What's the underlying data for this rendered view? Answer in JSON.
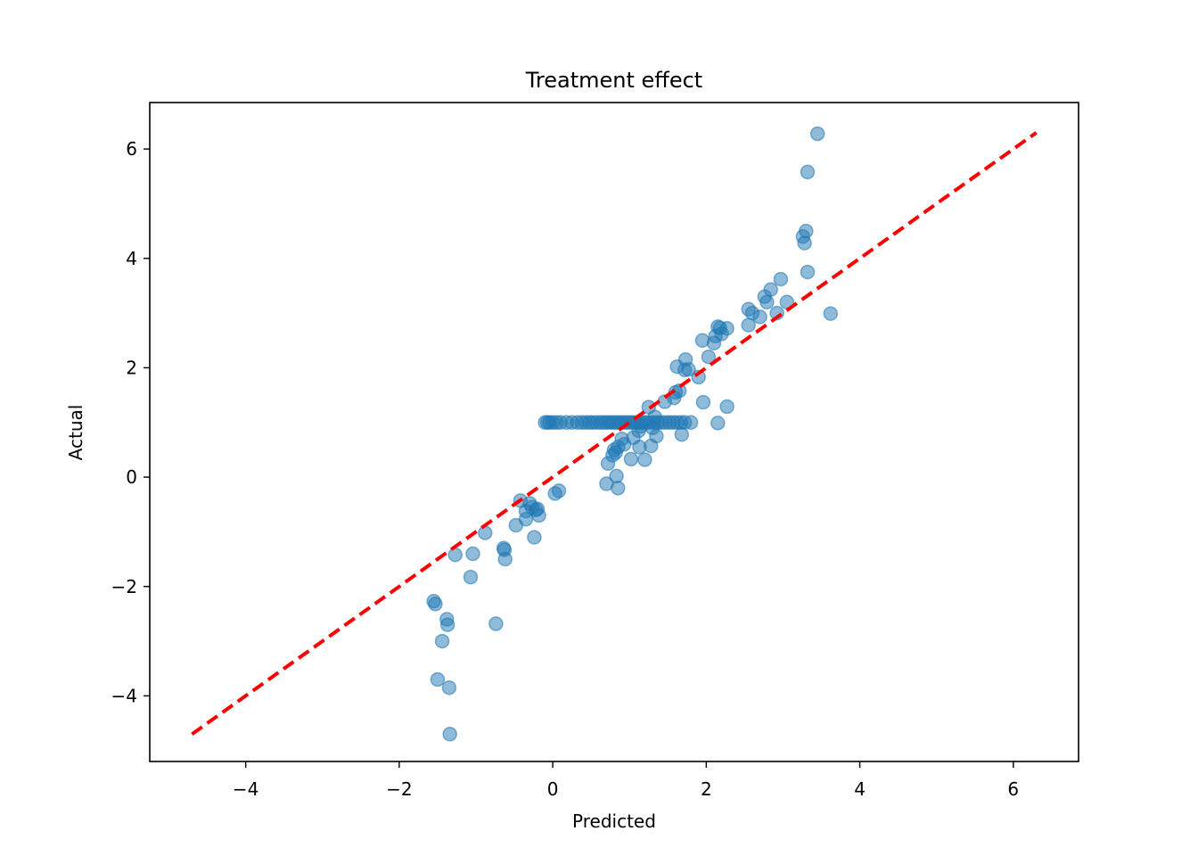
{
  "chart_data": {
    "type": "scatter",
    "title": "Treatment effect",
    "xlabel": "Predicted",
    "ylabel": "Actual",
    "xlim": [
      -5.25,
      6.85
    ],
    "ylim": [
      -5.2,
      6.85
    ],
    "xticks": [
      -4,
      -2,
      0,
      2,
      4,
      6
    ],
    "yticks": [
      -4,
      -2,
      0,
      2,
      4,
      6
    ],
    "xtick_labels": [
      "−4",
      "−2",
      "0",
      "2",
      "4",
      "6"
    ],
    "ytick_labels": [
      "−4",
      "−2",
      "0",
      "2",
      "4",
      "6"
    ],
    "grid": false,
    "legend": "none",
    "series": [
      {
        "name": "points",
        "color": "#1f77b4",
        "alpha": 0.5,
        "points": [
          [
            3.45,
            6.28
          ],
          [
            3.32,
            5.58
          ],
          [
            3.3,
            4.5
          ],
          [
            3.26,
            4.4
          ],
          [
            3.28,
            4.28
          ],
          [
            3.32,
            3.75
          ],
          [
            3.62,
            2.99
          ],
          [
            2.97,
            3.62
          ],
          [
            3.05,
            3.2
          ],
          [
            2.92,
            3.0
          ],
          [
            2.84,
            3.43
          ],
          [
            2.76,
            3.3
          ],
          [
            2.79,
            3.2
          ],
          [
            2.7,
            2.93
          ],
          [
            2.6,
            3.0
          ],
          [
            2.55,
            3.07
          ],
          [
            2.55,
            2.78
          ],
          [
            2.27,
            2.72
          ],
          [
            2.2,
            2.62
          ],
          [
            2.15,
            2.75
          ],
          [
            2.18,
            2.73
          ],
          [
            2.12,
            2.58
          ],
          [
            2.1,
            2.45
          ],
          [
            1.95,
            2.5
          ],
          [
            2.03,
            2.2
          ],
          [
            1.77,
            1.97
          ],
          [
            1.73,
            2.15
          ],
          [
            1.72,
            1.96
          ],
          [
            1.9,
            1.83
          ],
          [
            1.62,
            2.02
          ],
          [
            1.65,
            1.58
          ],
          [
            1.6,
            1.55
          ],
          [
            1.58,
            1.45
          ],
          [
            1.46,
            1.38
          ],
          [
            1.96,
            1.37
          ],
          [
            2.27,
            1.29
          ],
          [
            2.15,
            0.99
          ],
          [
            1.8,
            1.0
          ],
          [
            1.68,
            0.78
          ],
          [
            1.25,
            1.28
          ],
          [
            1.33,
            1.1
          ],
          [
            1.15,
            0.93
          ],
          [
            1.3,
            0.9
          ],
          [
            1.35,
            0.75
          ],
          [
            1.12,
            0.85
          ],
          [
            1.05,
            0.72
          ],
          [
            1.28,
            0.57
          ],
          [
            1.13,
            0.55
          ],
          [
            1.2,
            0.32
          ],
          [
            1.02,
            0.33
          ],
          [
            0.85,
            0.55
          ],
          [
            0.8,
            0.5
          ],
          [
            0.82,
            0.45
          ],
          [
            0.78,
            0.4
          ],
          [
            0.93,
            0.6
          ],
          [
            0.9,
            0.7
          ],
          [
            0.72,
            0.25
          ],
          [
            0.83,
            0.02
          ],
          [
            0.7,
            -0.12
          ],
          [
            0.85,
            -0.2
          ],
          [
            0.08,
            -0.25
          ],
          [
            0.03,
            -0.3
          ],
          [
            -0.2,
            -0.58
          ],
          [
            -0.18,
            -0.7
          ],
          [
            -0.3,
            -0.48
          ],
          [
            -0.27,
            -0.55
          ],
          [
            -0.22,
            -0.6
          ],
          [
            -0.35,
            -0.62
          ],
          [
            -0.42,
            -0.43
          ],
          [
            -0.35,
            -0.77
          ],
          [
            -0.48,
            -0.88
          ],
          [
            -0.24,
            -1.1
          ],
          [
            -0.88,
            -1.02
          ],
          [
            -0.64,
            -1.3
          ],
          [
            -0.63,
            -1.33
          ],
          [
            -0.62,
            -1.5
          ],
          [
            -1.04,
            -1.4
          ],
          [
            -1.27,
            -1.42
          ],
          [
            -1.07,
            -1.83
          ],
          [
            -0.74,
            -2.68
          ],
          [
            -1.55,
            -2.27
          ],
          [
            -1.53,
            -2.32
          ],
          [
            -1.38,
            -2.6
          ],
          [
            -1.37,
            -2.7
          ],
          [
            -1.44,
            -3.0
          ],
          [
            -1.5,
            -3.7
          ],
          [
            -1.35,
            -3.85
          ],
          [
            -1.34,
            -4.7
          ],
          [
            -0.1,
            1.0
          ],
          [
            -0.07,
            1.0
          ],
          [
            -0.04,
            1.0
          ],
          [
            0.0,
            1.0
          ],
          [
            0.05,
            1.0
          ],
          [
            0.1,
            1.0
          ],
          [
            0.18,
            1.0
          ],
          [
            0.25,
            1.0
          ],
          [
            0.32,
            1.0
          ],
          [
            0.38,
            1.0
          ],
          [
            0.43,
            1.0
          ],
          [
            0.48,
            1.0
          ],
          [
            0.52,
            1.0
          ],
          [
            0.57,
            1.0
          ],
          [
            0.62,
            1.0
          ],
          [
            0.66,
            1.0
          ],
          [
            0.7,
            1.0
          ],
          [
            0.74,
            1.0
          ],
          [
            0.78,
            1.0
          ],
          [
            0.82,
            1.0
          ],
          [
            0.86,
            1.0
          ],
          [
            0.9,
            1.0
          ],
          [
            0.94,
            1.0
          ],
          [
            0.98,
            1.0
          ],
          [
            1.02,
            1.0
          ],
          [
            1.06,
            1.0
          ],
          [
            1.1,
            1.0
          ],
          [
            1.14,
            1.0
          ],
          [
            1.18,
            1.0
          ],
          [
            1.22,
            1.0
          ],
          [
            1.27,
            1.0
          ],
          [
            1.32,
            1.0
          ],
          [
            1.37,
            1.0
          ],
          [
            1.42,
            1.0
          ],
          [
            1.47,
            1.0
          ],
          [
            1.52,
            1.0
          ],
          [
            1.57,
            1.0
          ],
          [
            1.62,
            1.0
          ],
          [
            1.67,
            1.0
          ],
          [
            1.72,
            1.0
          ]
        ]
      },
      {
        "name": "identity line",
        "type": "line",
        "style": "dashed",
        "color": "#ff0000",
        "x": [
          -4.7,
          6.3
        ],
        "y": [
          -4.7,
          6.3
        ]
      }
    ]
  }
}
